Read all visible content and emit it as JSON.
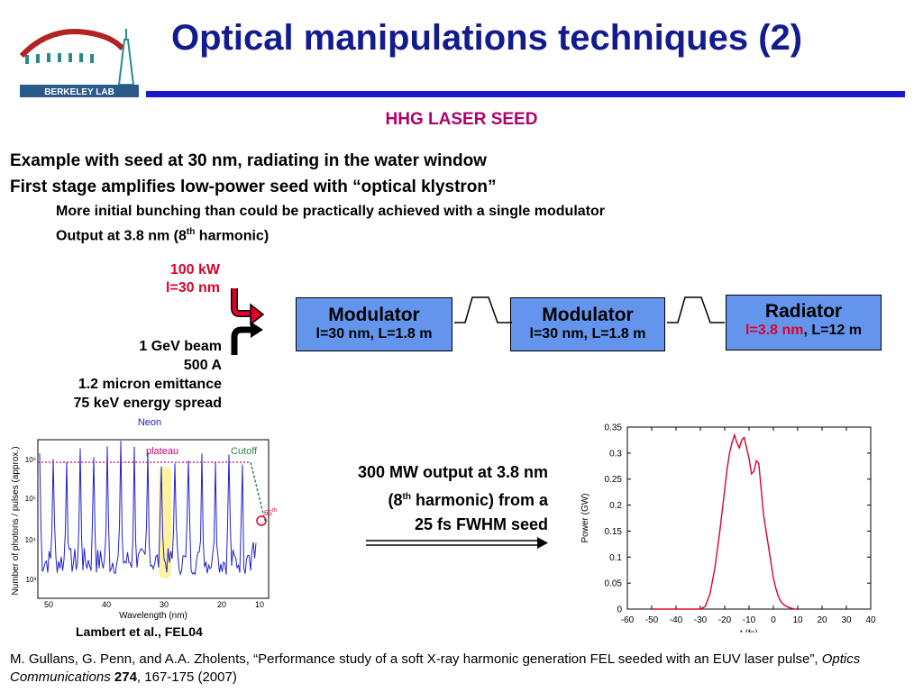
{
  "header": {
    "title": "Optical manipulations techniques (2)",
    "logo_text": "BERKELEY LAB"
  },
  "subtitle": "HHG LASER SEED",
  "bullets": {
    "b1": "Example with seed at 30 nm, radiating in the water window",
    "b2": "First stage amplifies low-power seed with “optical klystron”",
    "s1": "More initial bunching than could be practically achieved with a single modulator",
    "s2_pre": "Output at 3.8 nm (8",
    "s2_sup": "th",
    "s2_post": " harmonic)"
  },
  "diagram": {
    "seed_power": "100 kW",
    "seed_wavelength": "l=30 nm",
    "beam": [
      "1 GeV beam",
      "500 A",
      "1.2 micron emittance",
      "75 keV energy spread"
    ],
    "modulator1": {
      "title": "Modulator",
      "detail": "l=30 nm, L=1.8 m"
    },
    "modulator2": {
      "title": "Modulator",
      "detail": "l=30 nm, L=1.8 m"
    },
    "radiator": {
      "title": "Radiator",
      "detail_red": "l=3.8 nm",
      "detail_rest": ", L=12 m"
    }
  },
  "output": {
    "line1": "300 MW output at 3.8 nm",
    "line2_pre": "(8",
    "line2_sup": "th",
    "line2_post": " harmonic) from a",
    "line3": "25 fs FWHM seed"
  },
  "neon_plot": {
    "title": "Neon",
    "ylabel": "Number of photons / pulses (approx.)",
    "xlabel": "Wavelength (nm)",
    "plateau_label": "plateau",
    "cutoff_label": "Cutoff",
    "harmonic_label": "65",
    "harmonic_sup": "th",
    "x_ticks": [
      "50",
      "40",
      "30",
      "20",
      "10"
    ],
    "y_ticks": [
      "10⁶",
      "10⁵",
      "10⁴",
      "10³"
    ],
    "reference": "Lambert et al., FEL04"
  },
  "chart_data": {
    "type": "line",
    "title": "",
    "xlabel": "t (fs)",
    "ylabel": "Power (GW)",
    "xlim": [
      -60,
      40
    ],
    "ylim": [
      0,
      0.35
    ],
    "x_ticks": [
      "-60",
      "-50",
      "-40",
      "-30",
      "-20",
      "-10",
      "0",
      "10",
      "20",
      "30",
      "40"
    ],
    "y_ticks": [
      "0",
      "0.05",
      "0.1",
      "0.15",
      "0.2",
      "0.25",
      "0.3",
      "0.35"
    ],
    "color": "#e0002a",
    "series": [
      {
        "x": [
          -50,
          -40,
          -30,
          -28,
          -26,
          -24,
          -22,
          -20,
          -19,
          -18,
          -17,
          -16,
          -15,
          -14,
          -13,
          -12,
          -11,
          -10,
          -9,
          -8,
          -7,
          -6,
          -5,
          -4,
          -3,
          -2,
          -1,
          0,
          1,
          2,
          3,
          4,
          5,
          6,
          7,
          8,
          9,
          10
        ],
        "values": [
          0,
          0,
          0,
          0.005,
          0.03,
          0.08,
          0.15,
          0.23,
          0.27,
          0.3,
          0.32,
          0.335,
          0.32,
          0.31,
          0.325,
          0.33,
          0.31,
          0.29,
          0.26,
          0.265,
          0.285,
          0.28,
          0.23,
          0.18,
          0.15,
          0.12,
          0.09,
          0.06,
          0.04,
          0.025,
          0.015,
          0.01,
          0.006,
          0.004,
          0.002,
          0.001,
          0,
          0
        ]
      }
    ]
  },
  "citation": {
    "part1": "M. Gullans, G. Penn, and A.A. Zholents, “Performance study of a soft X-ray harmonic generation FEL seeded with an EUV laser pulse”, ",
    "journal": "Optics Communications",
    "sep": " ",
    "volume": "274",
    "rest": ", 167-175 (2007)"
  },
  "colors": {
    "title": "#131c8e",
    "rule": "#1a1acc",
    "subtitle": "#b0006e",
    "box": "#6495ed",
    "red": "#e0002a",
    "neon_line": "#2222cc"
  }
}
